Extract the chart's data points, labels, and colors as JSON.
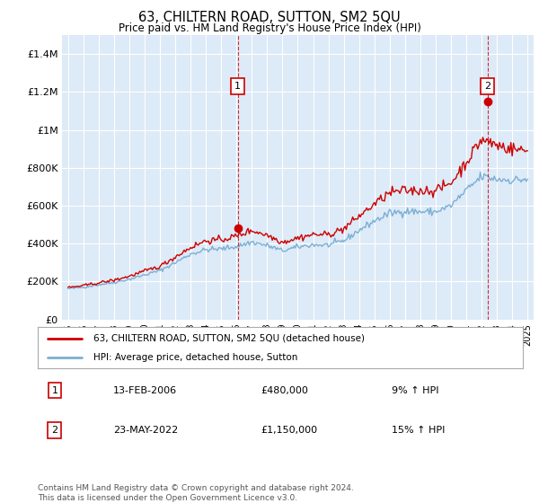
{
  "title": "63, CHILTERN ROAD, SUTTON, SM2 5QU",
  "subtitle": "Price paid vs. HM Land Registry's House Price Index (HPI)",
  "bg_color": "#ddeaf7",
  "hpi_color": "#7bafd4",
  "price_color": "#cc0000",
  "ylim": [
    0,
    1500000
  ],
  "yticks": [
    0,
    200000,
    400000,
    600000,
    800000,
    1000000,
    1200000,
    1400000
  ],
  "ytick_labels": [
    "£0",
    "£200K",
    "£400K",
    "£600K",
    "£800K",
    "£1M",
    "£1.2M",
    "£1.4M"
  ],
  "marker1_year": 2006.08,
  "marker1_price": 480000,
  "marker2_year": 2022.38,
  "marker2_price": 1150000,
  "marker1_date": "13-FEB-2006",
  "marker1_amount": "£480,000",
  "marker1_hpi": "9% ↑ HPI",
  "marker2_date": "23-MAY-2022",
  "marker2_amount": "£1,150,000",
  "marker2_hpi": "15% ↑ HPI",
  "legend_label1": "63, CHILTERN ROAD, SUTTON, SM2 5QU (detached house)",
  "legend_label2": "HPI: Average price, detached house, Sutton",
  "footer": "Contains HM Land Registry data © Crown copyright and database right 2024.\nThis data is licensed under the Open Government Licence v3.0."
}
